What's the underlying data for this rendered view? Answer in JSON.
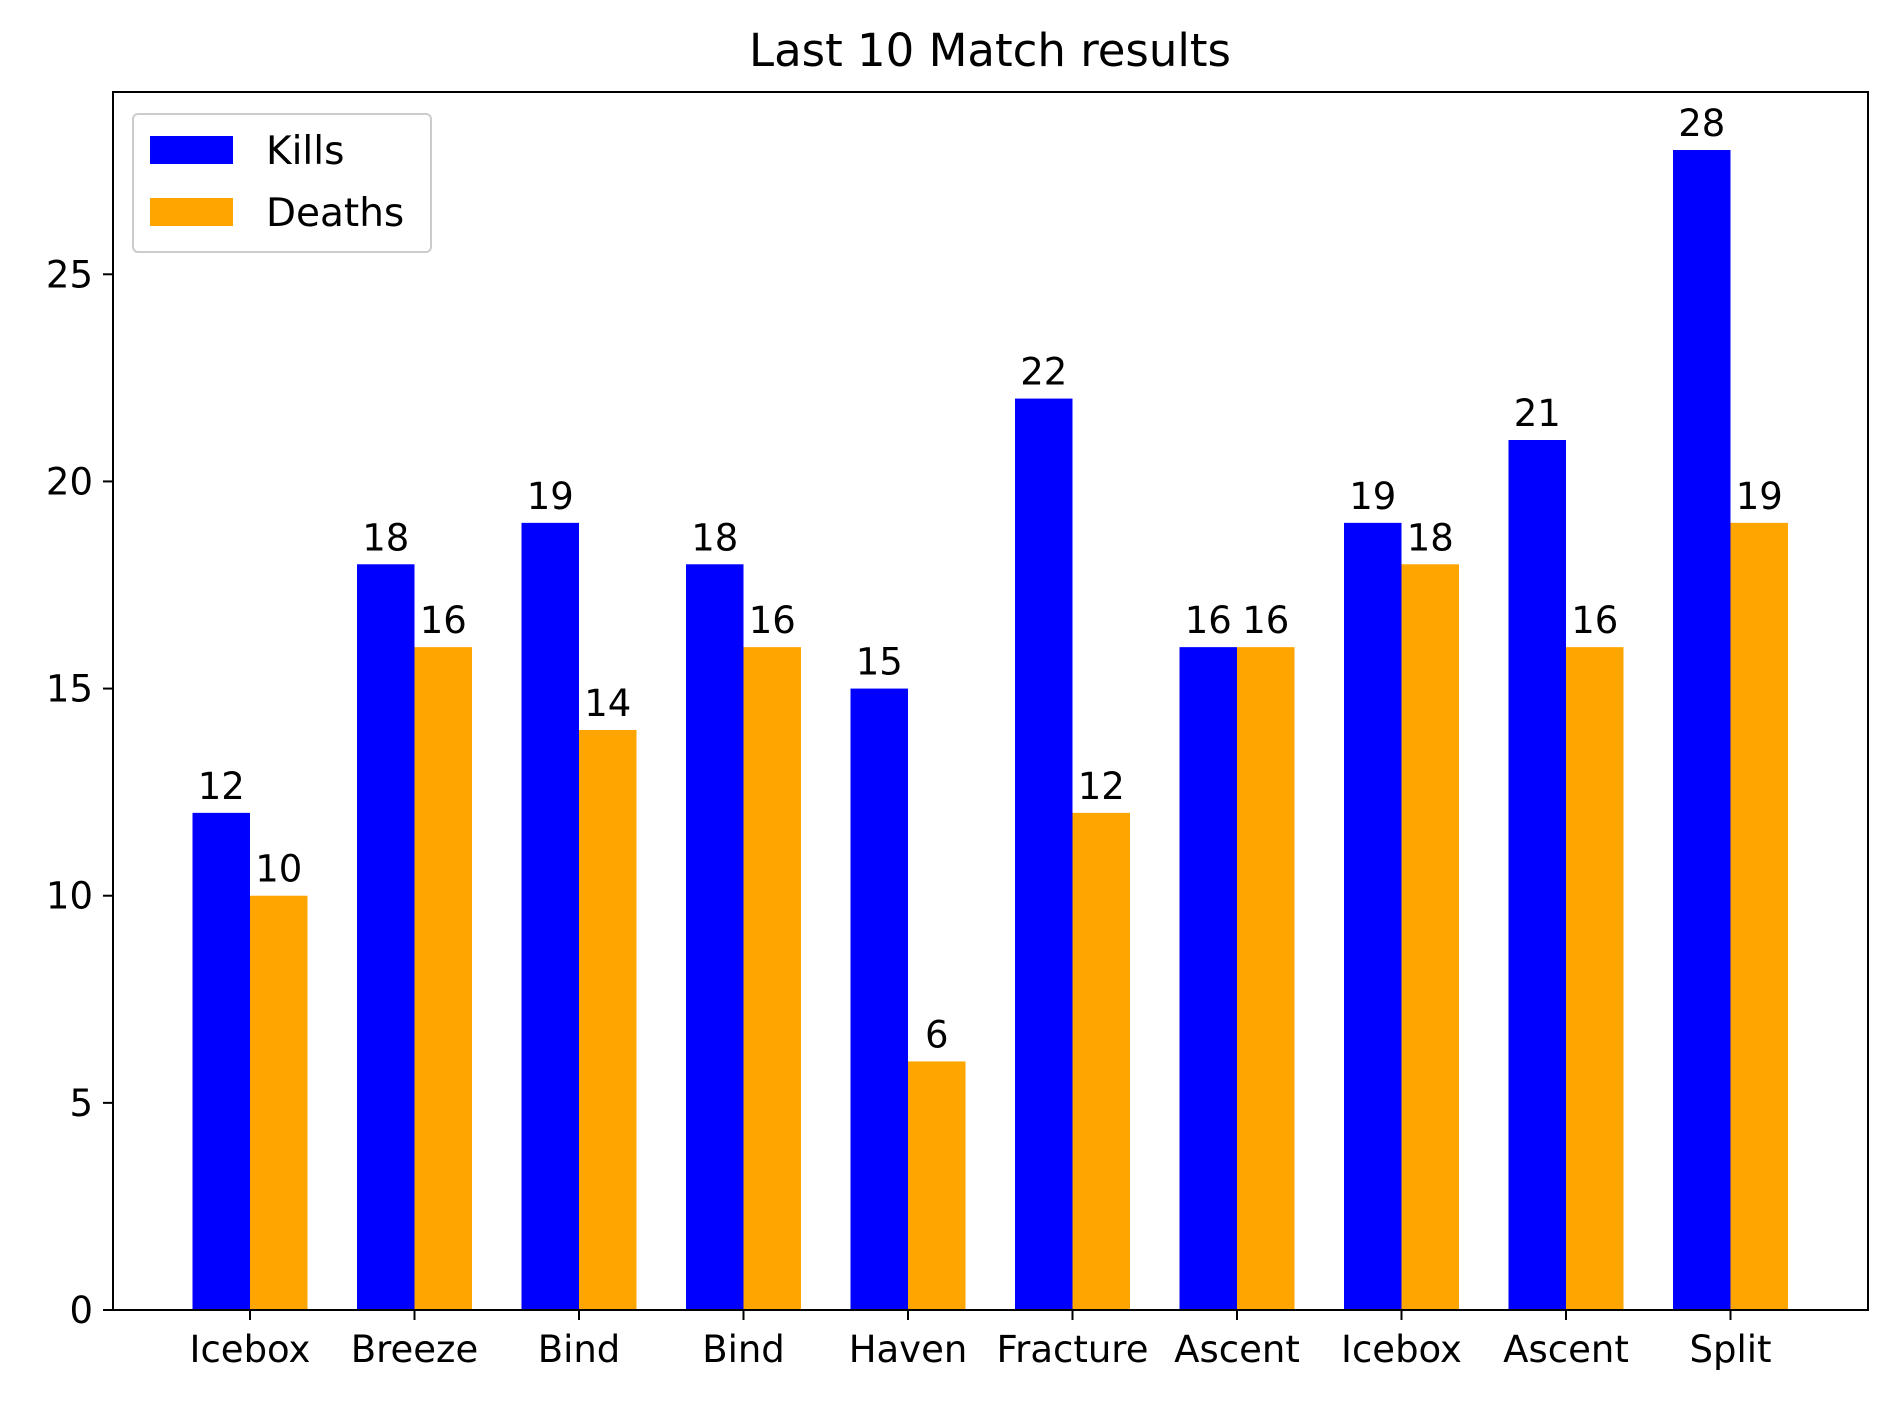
{
  "chart_data": {
    "type": "bar",
    "title": "Last 10 Match results",
    "xlabel": "",
    "ylabel": "",
    "categories": [
      "Icebox",
      "Breeze",
      "Bind",
      "Bind",
      "Haven",
      "Fracture",
      "Ascent",
      "Icebox",
      "Ascent",
      "Split"
    ],
    "series": [
      {
        "name": "Kills",
        "color": "#0000ff",
        "values": [
          12,
          18,
          19,
          18,
          15,
          22,
          16,
          19,
          21,
          28
        ]
      },
      {
        "name": "Deaths",
        "color": "#ffa500",
        "values": [
          10,
          16,
          14,
          16,
          6,
          12,
          16,
          18,
          16,
          19
        ]
      }
    ],
    "ylim": [
      0,
      29.4
    ],
    "yticks": [
      0,
      5,
      10,
      15,
      20,
      25
    ],
    "grid": false,
    "legend_position": "top-left",
    "data_labels": true
  }
}
